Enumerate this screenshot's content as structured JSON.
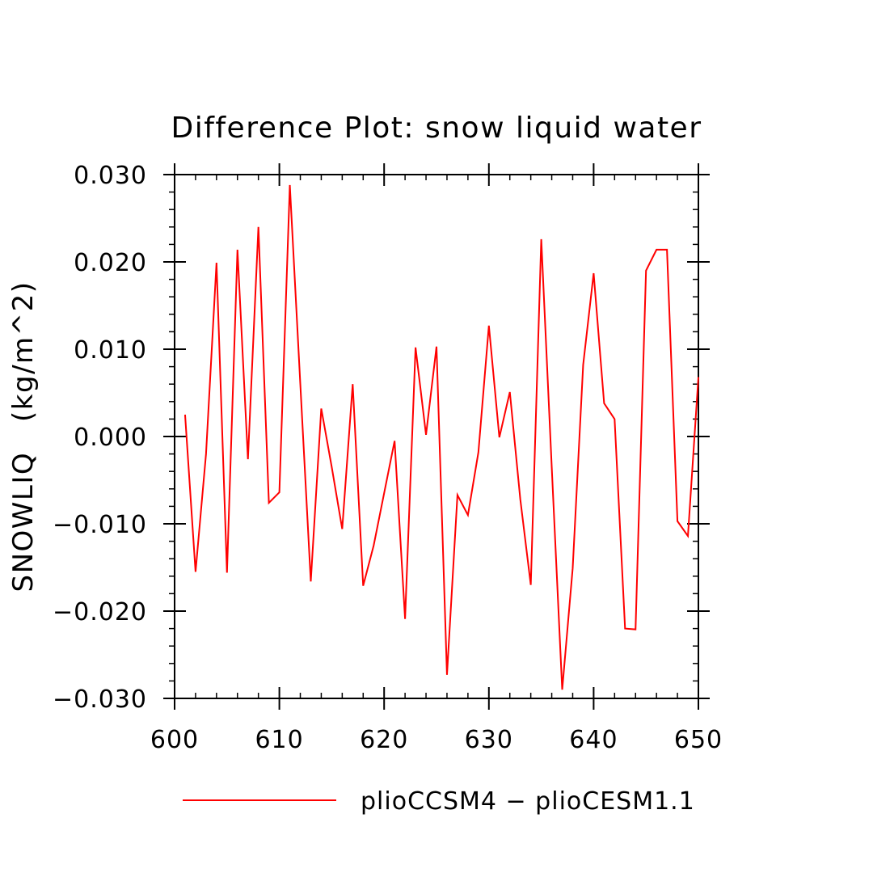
{
  "chart_data": {
    "type": "line",
    "title": "Difference Plot: snow liquid water",
    "xlabel": "",
    "ylabel": "SNOWLIQ   (kg/m^2)",
    "xlim": [
      600,
      650
    ],
    "ylim": [
      -0.03,
      0.03
    ],
    "x_ticks": [
      600,
      610,
      620,
      630,
      640,
      650
    ],
    "x_tick_labels": [
      "600",
      "610",
      "620",
      "630",
      "640",
      "650"
    ],
    "y_ticks": [
      -0.03,
      -0.02,
      -0.01,
      0.0,
      0.01,
      0.02,
      0.03
    ],
    "y_tick_labels": [
      "−0.030",
      "−0.020",
      "−0.010",
      "0.000",
      "0.010",
      "0.020",
      "0.030"
    ],
    "grid": false,
    "legend_position": "bottom",
    "series": [
      {
        "name": "plioCCSM4 − plioCESM1.1",
        "color": "#ff0000",
        "x": [
          601,
          602,
          603,
          604,
          605,
          606,
          607,
          608,
          609,
          610,
          611,
          612,
          613,
          614,
          615,
          616,
          617,
          618,
          619,
          620,
          621,
          622,
          623,
          624,
          625,
          626,
          627,
          628,
          629,
          630,
          631,
          632,
          633,
          634,
          635,
          636,
          637,
          638,
          639,
          640,
          641,
          642,
          643,
          644,
          645,
          646,
          647,
          648,
          649,
          650
        ],
        "values": [
          0.0025,
          -0.0155,
          -0.002,
          0.0199,
          -0.0156,
          0.0214,
          -0.0026,
          0.024,
          -0.0076,
          -0.0064,
          0.0288,
          0.006,
          -0.0166,
          0.0032,
          -0.0035,
          -0.0106,
          0.006,
          -0.0171,
          -0.0125,
          -0.0065,
          -0.0005,
          -0.0209,
          0.0102,
          0.0002,
          0.0103,
          -0.0273,
          -0.0067,
          -0.009,
          -0.0018,
          0.0127,
          -0.0001,
          0.0051,
          -0.0072,
          -0.017,
          0.0226,
          -0.0035,
          -0.029,
          -0.0151,
          0.0082,
          0.0187,
          0.0038,
          0.002,
          -0.022,
          -0.0221,
          0.019,
          0.0214,
          0.0214,
          -0.0097,
          -0.0114,
          0.0068
        ]
      }
    ]
  }
}
